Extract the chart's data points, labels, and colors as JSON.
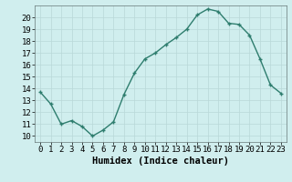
{
  "x": [
    0,
    1,
    2,
    3,
    4,
    5,
    6,
    7,
    8,
    9,
    10,
    11,
    12,
    13,
    14,
    15,
    16,
    17,
    18,
    19,
    20,
    21,
    22,
    23
  ],
  "y": [
    13.7,
    12.7,
    11.0,
    11.3,
    10.8,
    10.0,
    10.5,
    11.2,
    13.5,
    15.3,
    16.5,
    17.0,
    17.7,
    18.3,
    19.0,
    20.2,
    20.7,
    20.5,
    19.5,
    19.4,
    18.5,
    16.5,
    14.3,
    13.6
  ],
  "line_color": "#2e7d6e",
  "bg_color": "#d0eeee",
  "grid_color": "#b8d8d8",
  "xlabel": "Humidex (Indice chaleur)",
  "xlim": [
    -0.5,
    23.5
  ],
  "ylim": [
    9.5,
    21.0
  ],
  "yticks": [
    10,
    11,
    12,
    13,
    14,
    15,
    16,
    17,
    18,
    19,
    20
  ],
  "xticks": [
    0,
    1,
    2,
    3,
    4,
    5,
    6,
    7,
    8,
    9,
    10,
    11,
    12,
    13,
    14,
    15,
    16,
    17,
    18,
    19,
    20,
    21,
    22,
    23
  ],
  "xlabel_fontsize": 7.5,
  "tick_fontsize": 6.5,
  "marker": "+",
  "marker_size": 3.5,
  "line_width": 1.0
}
